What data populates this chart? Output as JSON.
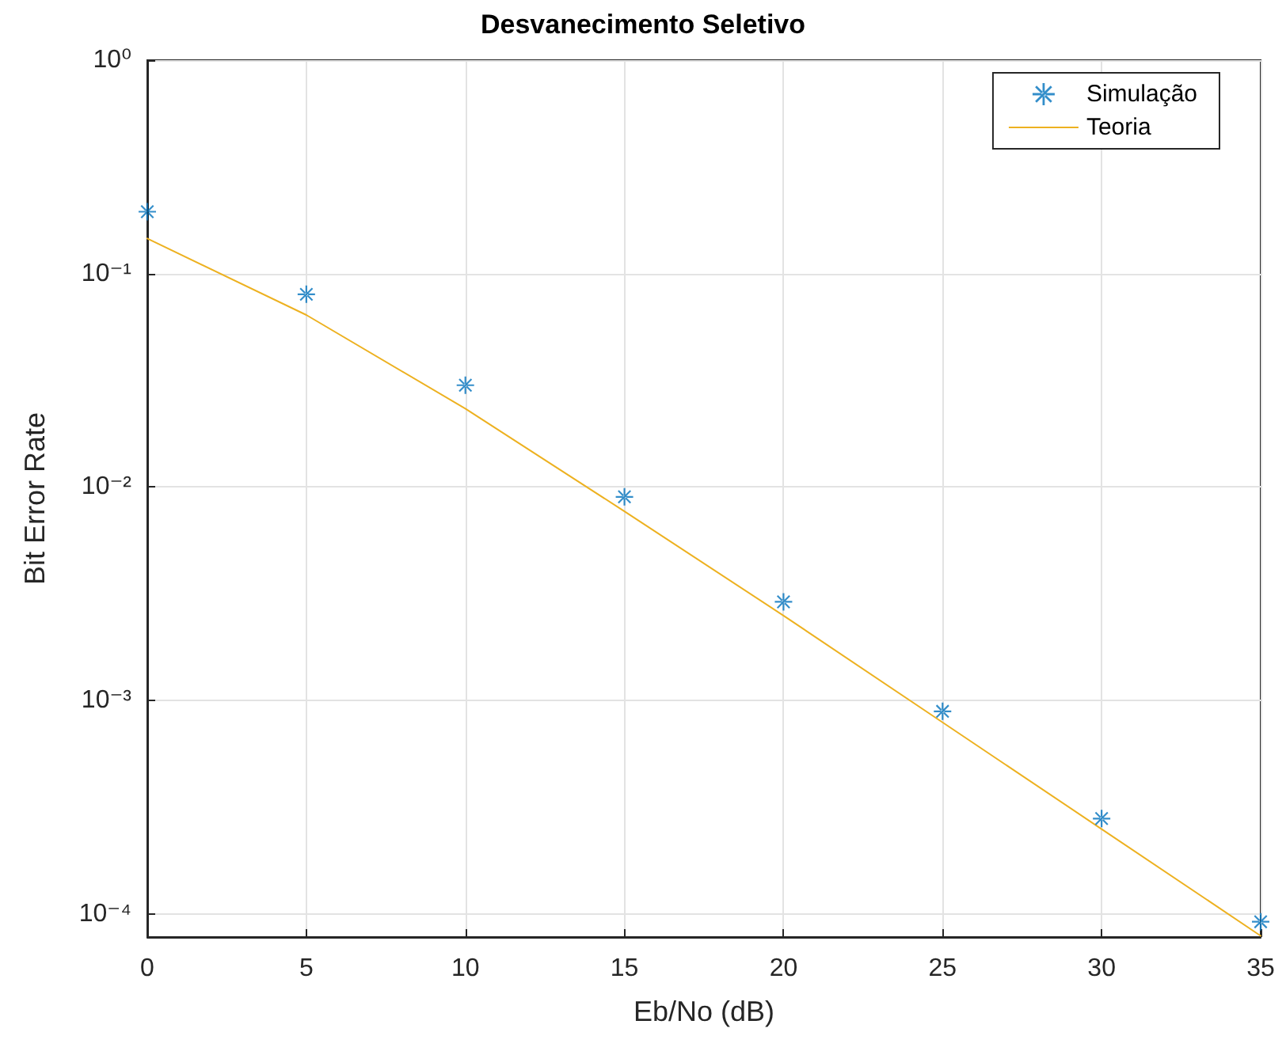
{
  "chart_data": {
    "type": "line",
    "title": "Desvanecimento Seletivo",
    "xlabel": "Eb/No (dB)",
    "ylabel": "Bit Error Rate",
    "x": [
      0,
      5,
      10,
      15,
      20,
      25,
      30,
      35
    ],
    "series": [
      {
        "name": "Simulação",
        "type": "scatter",
        "color": "#0072bd",
        "marker": "star",
        "values": [
          0.195,
          0.08,
          0.03,
          0.009,
          0.0029,
          0.00089,
          0.00028,
          9.2e-05
        ]
      },
      {
        "name": "Teoria",
        "color": "#edb120",
        "marker": "none",
        "line_style": "solid",
        "values": [
          0.146,
          0.064,
          0.0233,
          0.0077,
          0.0025,
          0.00079,
          0.00025,
          7.9e-05
        ]
      }
    ],
    "log": "y",
    "xlim": [
      0,
      35
    ],
    "xticks": [
      0,
      5,
      10,
      15,
      20,
      25,
      30,
      35
    ],
    "ylim": [
      7.8e-05,
      1
    ],
    "yticks": [
      {
        "value": 0.0001,
        "label": "10⁻⁴"
      },
      {
        "value": 0.001,
        "label": "10⁻³"
      },
      {
        "value": 0.01,
        "label": "10⁻²"
      },
      {
        "value": 0.1,
        "label": "10⁻¹"
      },
      {
        "value": 1,
        "label": "10⁰"
      }
    ],
    "grid": true,
    "legend": "top right"
  }
}
